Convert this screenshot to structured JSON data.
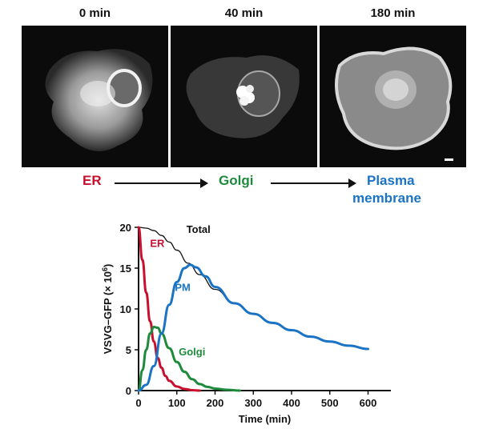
{
  "panels": [
    {
      "label": "0 min"
    },
    {
      "label": "40 min"
    },
    {
      "label": "180 min"
    }
  ],
  "pathway": {
    "er": "ER",
    "golgi": "Golgi",
    "pm_line1": "Plasma",
    "pm_line2": "membrane"
  },
  "colors": {
    "er": "#c8102e",
    "golgi": "#1e8a3c",
    "pm": "#1a73c4",
    "total": "#111111"
  },
  "chart_data": {
    "type": "line",
    "xlabel": "Time (min)",
    "ylabel": "VSVG–GFP (× 10",
    "ylabel_sup": "6",
    "ylabel_close": ")",
    "xlim": [
      0,
      650
    ],
    "ylim": [
      0,
      20
    ],
    "xticks": [
      0,
      100,
      200,
      300,
      400,
      500,
      600
    ],
    "yticks": [
      0,
      5,
      10,
      15,
      20
    ],
    "series": [
      {
        "name": "Total",
        "color_key": "total",
        "x": [
          0,
          20,
          40,
          60,
          80,
          100,
          130,
          160,
          200,
          250,
          300,
          350,
          400,
          450,
          500,
          550,
          600
        ],
        "y": [
          20,
          19.9,
          19.6,
          19.0,
          18.2,
          17.2,
          15.6,
          14.2,
          12.4,
          10.7,
          9.4,
          8.3,
          7.4,
          6.6,
          6.0,
          5.5,
          5.1
        ]
      },
      {
        "name": "ER",
        "color_key": "er",
        "x": [
          0,
          10,
          20,
          30,
          40,
          50,
          60,
          70,
          80,
          100,
          120,
          140,
          160
        ],
        "y": [
          20,
          16,
          12,
          8.5,
          6,
          4,
          2.8,
          1.8,
          1.2,
          0.5,
          0.2,
          0.05,
          0
        ]
      },
      {
        "name": "Golgi",
        "color_key": "golgi",
        "x": [
          0,
          10,
          20,
          30,
          40,
          50,
          60,
          80,
          100,
          120,
          140,
          160,
          180,
          200,
          230,
          265
        ],
        "y": [
          0,
          2.5,
          5,
          7,
          7.8,
          7.7,
          7.0,
          5.2,
          3.5,
          2.3,
          1.4,
          0.8,
          0.45,
          0.25,
          0.1,
          0
        ]
      },
      {
        "name": "PM",
        "color_key": "pm",
        "x": [
          0,
          20,
          40,
          60,
          80,
          100,
          120,
          135,
          150,
          175,
          200,
          250,
          300,
          350,
          400,
          450,
          500,
          550,
          600
        ],
        "y": [
          0,
          0.7,
          3,
          7,
          10.5,
          13.3,
          15.0,
          15.4,
          15.1,
          14.0,
          12.7,
          10.7,
          9.4,
          8.3,
          7.4,
          6.6,
          6.0,
          5.5,
          5.1
        ]
      }
    ]
  }
}
